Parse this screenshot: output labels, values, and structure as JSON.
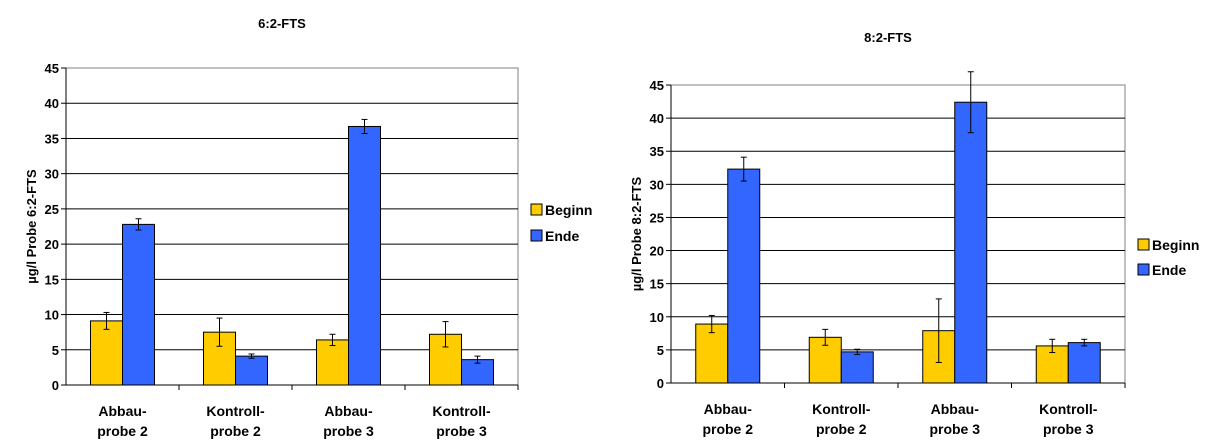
{
  "chart_data": [
    {
      "type": "bar",
      "title": "6:2-FTS",
      "ylabel": "µg/l Probe 6:2-FTS",
      "xlabel": "",
      "categories": [
        [
          "Abbau-",
          "probe 2"
        ],
        [
          "Kontroll-",
          "probe 2"
        ],
        [
          "Abbau-",
          "probe 3"
        ],
        [
          "Kontroll-",
          "probe 3"
        ]
      ],
      "ylim": [
        0,
        45
      ],
      "yticks": [
        0,
        5,
        10,
        15,
        20,
        25,
        30,
        35,
        40,
        45
      ],
      "grid": true,
      "legend": "right",
      "series": [
        {
          "name": "Beginn",
          "color": "#ffcc00",
          "values": [
            9.1,
            7.5,
            6.4,
            7.2
          ],
          "errors": [
            1.2,
            2.0,
            0.8,
            1.8
          ]
        },
        {
          "name": "Ende",
          "color": "#3366ff",
          "values": [
            22.8,
            4.1,
            36.7,
            3.6
          ],
          "errors": [
            0.8,
            0.3,
            1.0,
            0.5
          ]
        }
      ]
    },
    {
      "type": "bar",
      "title": "8:2-FTS",
      "ylabel": "µg/l Probe 8:2-FTS",
      "xlabel": "",
      "categories": [
        [
          "Abbau-",
          "probe 2"
        ],
        [
          "Kontroll-",
          "probe 2"
        ],
        [
          "Abbau-",
          "probe 3"
        ],
        [
          "Kontroll-",
          "probe 3"
        ]
      ],
      "ylim": [
        0,
        45
      ],
      "yticks": [
        0,
        5,
        10,
        15,
        20,
        25,
        30,
        35,
        40,
        45
      ],
      "grid": true,
      "legend": "right",
      "series": [
        {
          "name": "Beginn",
          "color": "#ffcc00",
          "values": [
            8.9,
            6.9,
            7.9,
            5.6
          ],
          "errors": [
            1.3,
            1.2,
            4.8,
            1.0
          ]
        },
        {
          "name": "Ende",
          "color": "#3366ff",
          "values": [
            32.3,
            4.7,
            42.4,
            6.1
          ],
          "errors": [
            1.8,
            0.4,
            4.6,
            0.5
          ]
        }
      ]
    }
  ]
}
